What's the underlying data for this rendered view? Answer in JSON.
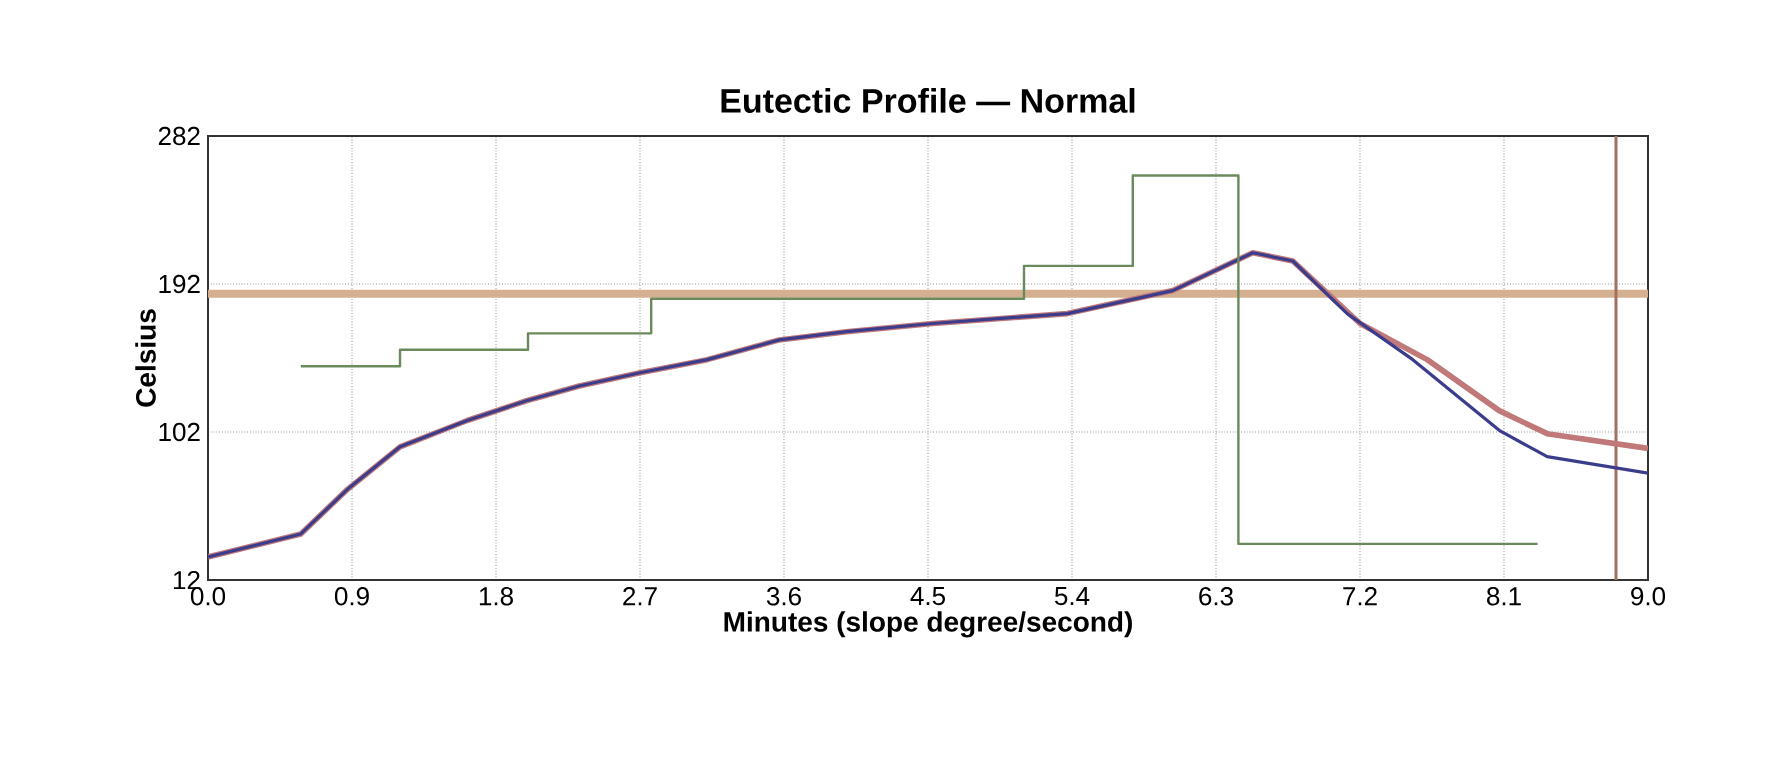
{
  "chart_data": {
    "type": "line",
    "title": "Eutectic Profile — Normal",
    "xlabel": "Minutes (slope degree/second)",
    "ylabel": "Celsius",
    "xlim": [
      0,
      9
    ],
    "ylim": [
      12,
      282
    ],
    "xticks": [
      {
        "value": 0,
        "label": "0.0"
      },
      0.9,
      1.8,
      2.7,
      3.6,
      4.5,
      5.4,
      6.3,
      7.2,
      8.1,
      {
        "value": 9,
        "label": "9.0"
      }
    ],
    "yticks": [
      12,
      102,
      192,
      282
    ],
    "grid": true,
    "marker": "none",
    "line_style": "solid",
    "ref_lines": [
      {
        "axis": "y",
        "value": 186,
        "color": "#d4b090"
      },
      {
        "axis": "x",
        "value": 8.8,
        "color": "#a07060"
      }
    ],
    "series": [
      {
        "color": "#c07878",
        "x": [
          0,
          0.58,
          0.87,
          1.2,
          1.62,
          1.99,
          2.32,
          2.7,
          3.12,
          3.57,
          3.99,
          4.53,
          5.37,
          6.03,
          6.53,
          6.78,
          7.2,
          7.62,
          8.07,
          8.37,
          9.0
        ],
        "values": [
          26,
          40,
          67,
          93,
          109,
          121,
          130,
          138,
          146,
          158,
          163,
          168,
          174,
          188,
          211,
          206,
          168,
          146,
          115,
          101,
          92
        ]
      },
      {
        "color": "#3c3c8c",
        "x": [
          0,
          0.58,
          0.87,
          1.2,
          1.62,
          1.99,
          2.32,
          2.7,
          3.12,
          3.57,
          3.99,
          4.53,
          5.37,
          6.03,
          6.53,
          6.78,
          7.12,
          7.53,
          8.07,
          8.37,
          9.0
        ],
        "values": [
          26,
          40,
          67,
          93,
          109,
          121,
          130,
          138,
          146,
          158,
          163,
          168,
          174,
          188,
          211,
          206,
          174,
          146,
          103,
          87,
          77
        ]
      },
      {
        "type": "step",
        "color": "#6a8a5c",
        "x": [
          0.58,
          1.2,
          2.0,
          2.77,
          5.1,
          5.78,
          6.44,
          8.31
        ],
        "values": [
          142,
          152,
          162,
          183,
          203,
          258,
          34,
          34
        ]
      }
    ]
  }
}
